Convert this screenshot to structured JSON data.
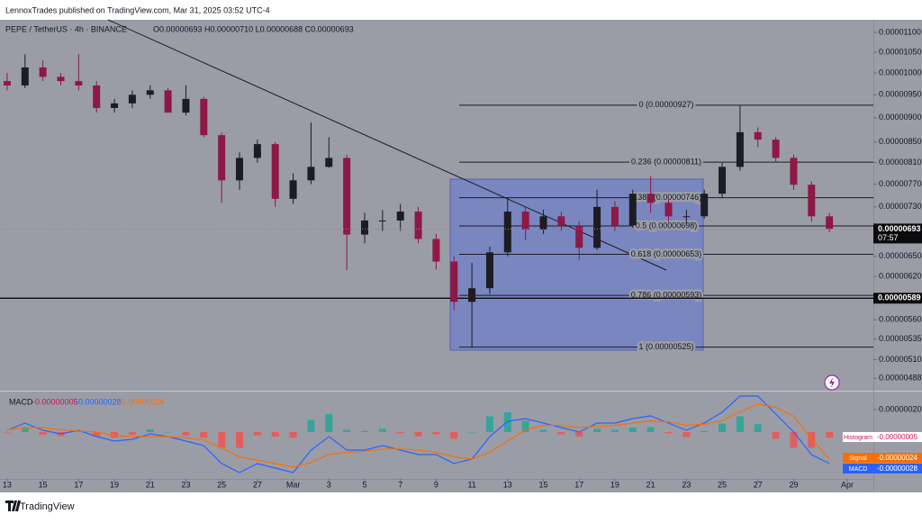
{
  "header": {
    "published": "LennoxTrades published on TradingView.com, Mar 31, 2025 03:52 UTC-4",
    "symbol": "PEPE / TetherUS · 4h · BINANCE",
    "ohlc": "O0.00000693 H0.00000710 L0.00000688 C0.00000693"
  },
  "footer": {
    "brand": "TradingView"
  },
  "chart_data": [
    {
      "type": "candlestick",
      "log_scale": true,
      "grid": false,
      "up_color": "#1c1c22",
      "down_color": "#8e1846",
      "x": [
        0,
        1,
        2,
        3,
        4,
        5,
        6,
        7,
        8,
        9,
        10,
        11,
        12,
        13,
        14,
        15,
        16,
        17,
        18,
        19,
        20,
        21,
        22,
        23,
        24,
        25,
        26,
        27,
        28,
        29,
        30,
        31,
        32,
        33,
        34,
        35,
        36,
        37,
        38,
        39,
        40,
        41,
        42,
        43,
        44,
        45,
        46
      ],
      "open": [
        9.81e-06,
        9.71e-06,
        1.013e-05,
        9.91e-06,
        9.81e-06,
        9.71e-06,
        9.21e-06,
        9.31e-06,
        9.5e-06,
        9.6e-06,
        9.11e-06,
        9.41e-06,
        8.64e-06,
        7.77e-06,
        8.19e-06,
        8.46e-06,
        7.44e-06,
        7.77e-06,
        8.02e-06,
        8.19e-06,
        6.84e-06,
        7.07e-06,
        7.07e-06,
        7.22e-06,
        6.77e-06,
        6.42e-06,
        5.84e-06,
        6.03e-06,
        6.56e-06,
        7.22e-06,
        6.92e-06,
        7.14e-06,
        6.99e-06,
        6.63e-06,
        7.3e-06,
        6.99e-06,
        7.53e-06,
        7.37e-06,
        7.14e-06,
        7.14e-06,
        7.53e-06,
        8.02e-06,
        8.7e-06,
        8.55e-06,
        8.19e-06,
        7.69e-06,
        7.14e-06
      ],
      "high": [
        1e-05,
        1.045e-05,
        1.03e-05,
        1e-05,
        1.045e-05,
        9.81e-06,
        9.41e-06,
        9.6e-06,
        9.71e-06,
        9.65e-06,
        9.71e-06,
        9.45e-06,
        8.7e-06,
        8.3e-06,
        8.55e-06,
        8.5e-06,
        7.9e-06,
        8.9e-06,
        8.6e-06,
        8.25e-06,
        7.2e-06,
        7.25e-06,
        7.35e-06,
        7.3e-06,
        6.85e-06,
        6.5e-06,
        6.4e-06,
        6.65e-06,
        7.45e-06,
        7.3e-06,
        7.25e-06,
        7.22e-06,
        7.05e-06,
        7.6e-06,
        7.4e-06,
        7.6e-06,
        7.85e-06,
        7.45e-06,
        7.25e-06,
        7.6e-06,
        8.1e-06,
        9.27e-06,
        8.8e-06,
        8.6e-06,
        8.25e-06,
        7.75e-06,
        7.2e-06
      ],
      "low": [
        9.6e-06,
        9.65e-06,
        9.81e-06,
        9.71e-06,
        9.6e-06,
        9.11e-06,
        9.11e-06,
        9.21e-06,
        9.41e-06,
        9.11e-06,
        9.05e-06,
        8.6e-06,
        7.37e-06,
        7.6e-06,
        8.1e-06,
        7.3e-06,
        7.35e-06,
        7.7e-06,
        8e-06,
        6.29e-06,
        6.7e-06,
        6.9e-06,
        6.9e-06,
        6.7e-06,
        6.3e-06,
        5.72e-06,
        5.25e-06,
        5.95e-06,
        6.5e-06,
        6.75e-06,
        6.85e-06,
        6.9e-06,
        6.45e-06,
        6.6e-06,
        6.9e-06,
        6.95e-06,
        7.2e-06,
        7.05e-06,
        7e-06,
        7.1e-06,
        7.45e-06,
        7.95e-06,
        8.4e-06,
        8.1e-06,
        7.6e-06,
        7.05e-06,
        6.88e-06
      ],
      "close": [
        9.71e-06,
        1.013e-05,
        9.91e-06,
        9.81e-06,
        9.71e-06,
        9.21e-06,
        9.31e-06,
        9.5e-06,
        9.6e-06,
        9.11e-06,
        9.41e-06,
        8.64e-06,
        7.77e-06,
        8.19e-06,
        8.46e-06,
        7.44e-06,
        7.77e-06,
        8.02e-06,
        8.19e-06,
        6.84e-06,
        7.07e-06,
        7.07e-06,
        7.22e-06,
        6.77e-06,
        6.42e-06,
        5.84e-06,
        6.03e-06,
        6.56e-06,
        7.22e-06,
        6.92e-06,
        7.14e-06,
        6.99e-06,
        6.63e-06,
        7.3e-06,
        6.99e-06,
        7.53e-06,
        7.37e-06,
        7.14e-06,
        7.14e-06,
        7.53e-06,
        8.02e-06,
        8.7e-06,
        8.55e-06,
        8.19e-06,
        7.69e-06,
        7.14e-06,
        6.93e-06
      ],
      "xlim": [
        -0.4,
        48.46
      ],
      "xticks": [
        {
          "value": 0,
          "label": "13"
        },
        {
          "value": 2,
          "label": "15"
        },
        {
          "value": 4,
          "label": "17"
        },
        {
          "value": 6,
          "label": "19"
        },
        {
          "value": 8,
          "label": "21"
        },
        {
          "value": 10,
          "label": "23"
        },
        {
          "value": 12,
          "label": "25"
        },
        {
          "value": 14,
          "label": "27"
        },
        {
          "value": 16,
          "label": "Mar"
        },
        {
          "value": 18,
          "label": "3"
        },
        {
          "value": 20,
          "label": "5"
        },
        {
          "value": 22,
          "label": "7"
        },
        {
          "value": 24,
          "label": "9"
        },
        {
          "value": 26,
          "label": "11"
        },
        {
          "value": 28,
          "label": "13"
        },
        {
          "value": 30,
          "label": "15"
        },
        {
          "value": 32,
          "label": "17"
        },
        {
          "value": 34,
          "label": "19"
        },
        {
          "value": 36,
          "label": "21"
        },
        {
          "value": 38,
          "label": "23"
        },
        {
          "value": 40,
          "label": "25"
        },
        {
          "value": 42,
          "label": "27"
        },
        {
          "value": 44,
          "label": "29"
        },
        {
          "value": 47,
          "label": "Apr"
        }
      ],
      "ylim": [
        4.76e-06,
        1.133e-05
      ],
      "yticks": [
        {
          "value": 1.1e-05,
          "label": "0.00001100"
        },
        {
          "value": 1.05e-05,
          "label": "0.00001050"
        },
        {
          "value": 1e-05,
          "label": "0.00001000"
        },
        {
          "value": 9.5e-06,
          "label": "0.00000950"
        },
        {
          "value": 9e-06,
          "label": "0.00000900"
        },
        {
          "value": 8.5e-06,
          "label": "0.00000850"
        },
        {
          "value": 8.1e-06,
          "label": "0.00000810"
        },
        {
          "value": 7.7e-06,
          "label": "0.00000770"
        },
        {
          "value": 7.3e-06,
          "label": "0.00000730"
        },
        {
          "value": 6.5e-06,
          "label": "0.00000650"
        },
        {
          "value": 6.2e-06,
          "label": "0.00000620"
        },
        {
          "value": 5.6e-06,
          "label": "0.00000560"
        },
        {
          "value": 5.35e-06,
          "label": "0.00000535"
        },
        {
          "value": 5.1e-06,
          "label": "0.00000510"
        },
        {
          "value": 4.88e-06,
          "label": "0.00000488"
        }
      ],
      "fib_levels": [
        {
          "value": 9.27e-06,
          "label": "0 (0.00000927)"
        },
        {
          "value": 8.11e-06,
          "label": "0.236 (0.00000811)"
        },
        {
          "value": 7.46e-06,
          "label": "0.382 (0.00000746)"
        },
        {
          "value": 6.98e-06,
          "label": "0.5 (0.00000698)"
        },
        {
          "value": 6.53e-06,
          "label": "0.618 (0.00000653)"
        },
        {
          "value": 5.93e-06,
          "label": "0.786 (0.00000593)"
        },
        {
          "value": 5.25e-06,
          "label": "1 (0.00000525)"
        }
      ],
      "current_price": {
        "value": 6.93e-06,
        "label": "0.00000693",
        "countdown": "07:57"
      },
      "alert_line": {
        "value": 5.89e-06,
        "label": "0.00000589"
      }
    },
    {
      "type": "macd",
      "title": "MACD",
      "x": [
        0,
        1,
        2,
        3,
        4,
        5,
        6,
        7,
        8,
        9,
        10,
        11,
        12,
        13,
        14,
        15,
        16,
        17,
        18,
        19,
        20,
        21,
        22,
        23,
        24,
        25,
        26,
        27,
        28,
        29,
        30,
        31,
        32,
        33,
        34,
        35,
        36,
        37,
        38,
        39,
        40,
        41,
        42,
        43,
        44,
        45,
        46
      ],
      "ylim": [
        -4.16e-07,
        3.44e-07
      ],
      "yticks": [
        {
          "value": 2e-07,
          "label": "0.00000020"
        }
      ],
      "series": [
        {
          "name": "Histogram",
          "kind": "bar",
          "color": "#f08a8a",
          "up_color": "#26a69a",
          "down_color": "#ef5350",
          "last_label": "-0.00000005",
          "values": [
            -4e-09,
            4e-08,
            -2.4e-08,
            -3.6e-08,
            6e-09,
            -4e-08,
            -5e-08,
            -2.4e-08,
            2.4e-08,
            0,
            -3e-08,
            -5e-08,
            -1.4e-07,
            -1.4e-07,
            -3e-08,
            -4e-08,
            -5e-08,
            1.1e-07,
            1.6e-07,
            2e-08,
            1e-08,
            3e-08,
            -1e-08,
            -4e-08,
            -2e-08,
            -6e-08,
            0,
            1.4e-07,
            1.76e-07,
            1e-07,
            2e-08,
            -2e-08,
            -4e-08,
            3e-08,
            2e-08,
            4e-08,
            4.4e-08,
            -1e-08,
            -4.4e-08,
            1e-08,
            7.6e-08,
            1.4e-07,
            7e-08,
            -6e-08,
            -1.4e-07,
            -1.4e-07,
            -5e-08
          ]
        },
        {
          "name": "MACD",
          "kind": "line",
          "color": "#2962ff",
          "last_label": "-0.00000028",
          "values": [
            1.6e-08,
            8e-08,
            1.6e-08,
            -1.6e-08,
            1.6e-08,
            -4e-08,
            -8e-08,
            -6.4e-08,
            -1.6e-08,
            -4e-08,
            -8e-08,
            -1.2e-07,
            -2.8e-07,
            -3.6e-07,
            -2.8e-07,
            -3.2e-07,
            -3.6e-07,
            -1.6e-07,
            -4e-08,
            -1.6e-07,
            -1.6e-07,
            -1.2e-07,
            -1.6e-07,
            -2e-07,
            -2e-07,
            -2.8e-07,
            -2.4e-07,
            -4e-08,
            9.6e-08,
            1.2e-07,
            8e-08,
            4e-08,
            0,
            8e-08,
            8e-08,
            1.2e-07,
            1.44e-07,
            8e-08,
            1.6e-08,
            8e-08,
            1.76e-07,
            3.2e-07,
            3.2e-07,
            1.6e-07,
            0,
            -2e-07,
            -2.8e-07
          ]
        },
        {
          "name": "Signal",
          "kind": "line",
          "color": "#ff6d00",
          "last_label": "-0.00000024",
          "values": [
            2e-08,
            4e-08,
            4e-08,
            2e-08,
            1e-08,
            0,
            -3e-08,
            -4e-08,
            -4e-08,
            -4e-08,
            -5e-08,
            -7e-08,
            -1.4e-07,
            -2.2e-07,
            -2.5e-07,
            -2.8e-07,
            -3.1e-07,
            -2.7e-07,
            -2e-07,
            -1.8e-07,
            -1.7e-07,
            -1.5e-07,
            -1.5e-07,
            -1.6e-07,
            -1.8e-07,
            -2.2e-07,
            -2.4e-07,
            -1.8e-07,
            -8e-08,
            2e-08,
            6e-08,
            6e-08,
            4e-08,
            5e-08,
            6e-08,
            8e-08,
            1e-07,
            9e-08,
            6e-08,
            7e-08,
            1e-07,
            1.8e-07,
            2.5e-07,
            2.2e-07,
            1.4e-07,
            -6e-08,
            -2.4e-07
          ]
        }
      ]
    }
  ]
}
